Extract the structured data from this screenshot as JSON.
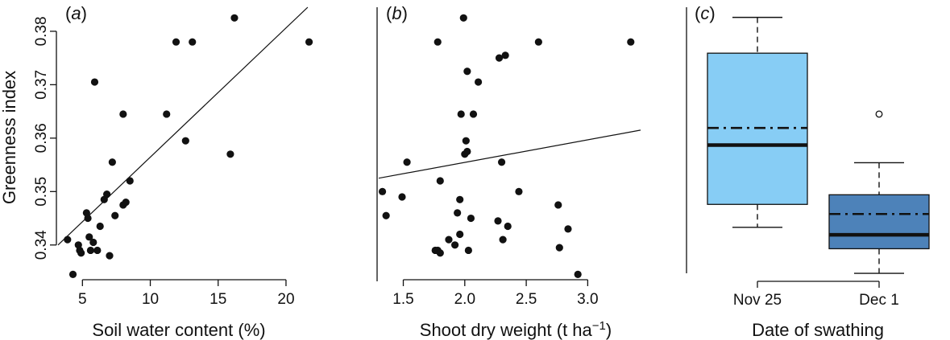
{
  "figure": {
    "ylabel": "Greenness index"
  },
  "chart_data": [
    {
      "panel_label": "a",
      "type": "scatter",
      "xlabel": "Soil water content (%)",
      "ylabel": "Greenness index",
      "xlim": [
        3.2,
        22.2
      ],
      "ylim": [
        0.3335,
        0.3845
      ],
      "xticks": [
        5,
        10,
        15,
        20
      ],
      "xtick_labels": [
        "5",
        "10",
        "15",
        "20"
      ],
      "yticks": [
        0.34,
        0.35,
        0.36,
        0.37,
        0.38
      ],
      "ytick_labels": [
        "0.34",
        "0.35",
        "0.36",
        "0.37",
        "0.38"
      ],
      "points": [
        [
          3.9,
          0.341
        ],
        [
          4.3,
          0.3345
        ],
        [
          4.7,
          0.34
        ],
        [
          4.8,
          0.339
        ],
        [
          4.9,
          0.3385
        ],
        [
          5.3,
          0.346
        ],
        [
          5.4,
          0.345
        ],
        [
          5.5,
          0.3415
        ],
        [
          5.6,
          0.339
        ],
        [
          5.8,
          0.3405
        ],
        [
          5.9,
          0.3705
        ],
        [
          6.1,
          0.339
        ],
        [
          6.3,
          0.3435
        ],
        [
          6.6,
          0.3485
        ],
        [
          6.8,
          0.3495
        ],
        [
          7.0,
          0.338
        ],
        [
          7.2,
          0.3555
        ],
        [
          7.4,
          0.3455
        ],
        [
          8.0,
          0.3645
        ],
        [
          8.0,
          0.3475
        ],
        [
          8.2,
          0.348
        ],
        [
          8.5,
          0.352
        ],
        [
          11.2,
          0.3645
        ],
        [
          11.9,
          0.378
        ],
        [
          12.6,
          0.3595
        ],
        [
          13.1,
          0.378
        ],
        [
          15.9,
          0.357
        ],
        [
          16.2,
          0.3825
        ],
        [
          21.7,
          0.378
        ]
      ],
      "fit_line": [
        [
          3.2,
          0.34
        ],
        [
          21.6,
          0.3845
        ]
      ]
    },
    {
      "panel_label": "b",
      "type": "scatter",
      "xlabel": "Shoot dry weight (t ha",
      "xlabel_sup": "−1",
      "xlabel_end": ")",
      "xlim": [
        1.3,
        3.43
      ],
      "ylim": [
        0.3335,
        0.3845
      ],
      "xticks": [
        1.5,
        2.0,
        2.5,
        3.0
      ],
      "xtick_labels": [
        "1.5",
        "2.0",
        "2.5",
        "3.0"
      ],
      "points": [
        [
          1.33,
          0.35
        ],
        [
          1.36,
          0.3455
        ],
        [
          1.49,
          0.349
        ],
        [
          1.53,
          0.3555
        ],
        [
          1.76,
          0.339
        ],
        [
          1.78,
          0.339
        ],
        [
          1.78,
          0.378
        ],
        [
          1.8,
          0.352
        ],
        [
          1.8,
          0.3385
        ],
        [
          1.87,
          0.341
        ],
        [
          1.92,
          0.34
        ],
        [
          1.94,
          0.346
        ],
        [
          1.96,
          0.3485
        ],
        [
          1.96,
          0.342
        ],
        [
          1.97,
          0.3645
        ],
        [
          1.99,
          0.3825
        ],
        [
          2.0,
          0.357
        ],
        [
          2.01,
          0.3595
        ],
        [
          2.02,
          0.3575
        ],
        [
          2.02,
          0.3725
        ],
        [
          2.03,
          0.339
        ],
        [
          2.05,
          0.345
        ],
        [
          2.07,
          0.3645
        ],
        [
          2.11,
          0.3705
        ],
        [
          2.27,
          0.3445
        ],
        [
          2.28,
          0.375
        ],
        [
          2.3,
          0.3555
        ],
        [
          2.31,
          0.341
        ],
        [
          2.33,
          0.3755
        ],
        [
          2.35,
          0.3435
        ],
        [
          2.44,
          0.35
        ],
        [
          2.6,
          0.378
        ],
        [
          2.76,
          0.3475
        ],
        [
          2.77,
          0.3395
        ],
        [
          2.84,
          0.343
        ],
        [
          2.92,
          0.3345
        ],
        [
          3.35,
          0.378
        ]
      ],
      "fit_line": [
        [
          1.3,
          0.3525
        ],
        [
          3.43,
          0.3615
        ]
      ]
    },
    {
      "panel_label": "c",
      "type": "box",
      "xlabel": "Date of swathing",
      "ylim": [
        0.3335,
        0.3845
      ],
      "categories": [
        "Nov 25",
        "Dec 1"
      ],
      "boxes": [
        {
          "category": "Nov 25",
          "color": "#87cdf5",
          "whisker_low": 0.3433,
          "q1": 0.3476,
          "median": 0.3587,
          "mean": 0.3619,
          "q3": 0.3759,
          "whisker_high": 0.3826,
          "outliers": []
        },
        {
          "category": "Dec 1",
          "color": "#4d82b9",
          "whisker_low": 0.3347,
          "q1": 0.3393,
          "median": 0.3419,
          "mean": 0.3458,
          "q3": 0.3494,
          "whisker_high": 0.3554,
          "outliers": [
            0.3645
          ]
        }
      ]
    }
  ]
}
